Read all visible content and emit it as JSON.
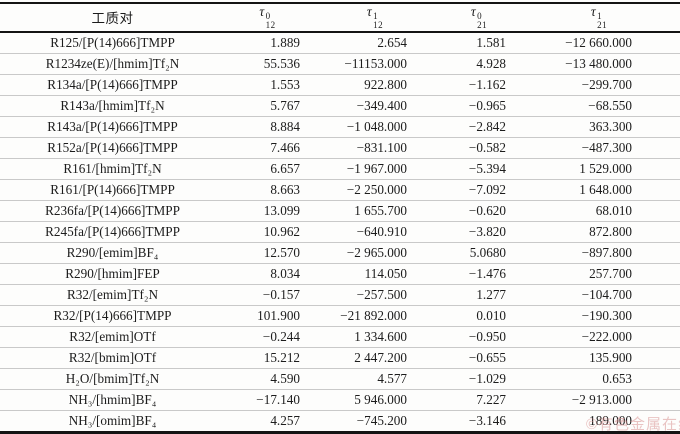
{
  "table": {
    "columns": [
      {
        "label": "工质对"
      },
      {
        "base": "τ",
        "sup": "0",
        "sub": "12"
      },
      {
        "base": "τ",
        "sup": "1",
        "sub": "12"
      },
      {
        "base": "τ",
        "sup": "0",
        "sub": "21"
      },
      {
        "base": "τ",
        "sup": "1",
        "sub": "21"
      }
    ],
    "rows": [
      [
        "R125/[P(14)666]TMPP",
        "1.889",
        "2.654",
        "1.581",
        "−12 660.000"
      ],
      [
        "R1234ze(E)/[hmim]Tf₂N",
        "55.536",
        "−11153.000",
        "4.928",
        "−13 480.000"
      ],
      [
        "R134a/[P(14)666]TMPP",
        "1.553",
        "922.800",
        "−1.162",
        "−299.700"
      ],
      [
        "R143a/[hmim]Tf₂N",
        "5.767",
        "−349.400",
        "−0.965",
        "−68.550"
      ],
      [
        "R143a/[P(14)666]TMPP",
        "8.884",
        "−1 048.000",
        "−2.842",
        "363.300"
      ],
      [
        "R152a/[P(14)666]TMPP",
        "7.466",
        "−831.100",
        "−0.582",
        "−487.300"
      ],
      [
        "R161/[hmim]Tf₂N",
        "6.657",
        "−1 967.000",
        "−5.394",
        "1 529.000"
      ],
      [
        "R161/[P(14)666]TMPP",
        "8.663",
        "−2 250.000",
        "−7.092",
        "1 648.000"
      ],
      [
        "R236fa/[P(14)666]TMPP",
        "13.099",
        "1 655.700",
        "−0.620",
        "68.010"
      ],
      [
        "R245fa/[P(14)666]TMPP",
        "10.962",
        "−640.910",
        "−3.820",
        "872.800"
      ],
      [
        "R290/[emim]BF₄",
        "12.570",
        "−2 965.000",
        "5.0680",
        "−897.800"
      ],
      [
        "R290/[hmim]FEP",
        "8.034",
        "114.050",
        "−1.476",
        "257.700"
      ],
      [
        "R32/[emim]Tf₂N",
        "−0.157",
        "−257.500",
        "1.277",
        "−104.700"
      ],
      [
        "R32/[P(14)666]TMPP",
        "101.900",
        "−21 892.000",
        "0.010",
        "−190.300"
      ],
      [
        "R32/[emim]OTf",
        "−0.244",
        "1 334.600",
        "−0.950",
        "−222.000"
      ],
      [
        "R32/[bmim]OTf",
        "15.212",
        "2 447.200",
        "−0.655",
        "135.900"
      ],
      [
        "H₂O/[bmim]Tf₂N",
        "4.590",
        "4.577",
        "−1.029",
        "0.653"
      ],
      [
        "NH₃/[hmim]BF₄",
        "−17.140",
        "5 946.000",
        "7.227",
        "−2 913.000"
      ],
      [
        "NH₃/[omim]BF₄",
        "4.257",
        "−745.200",
        "−3.146",
        "189.000"
      ]
    ]
  },
  "watermark": {
    "text": "©有色金属在线",
    "color": "#d99494"
  }
}
